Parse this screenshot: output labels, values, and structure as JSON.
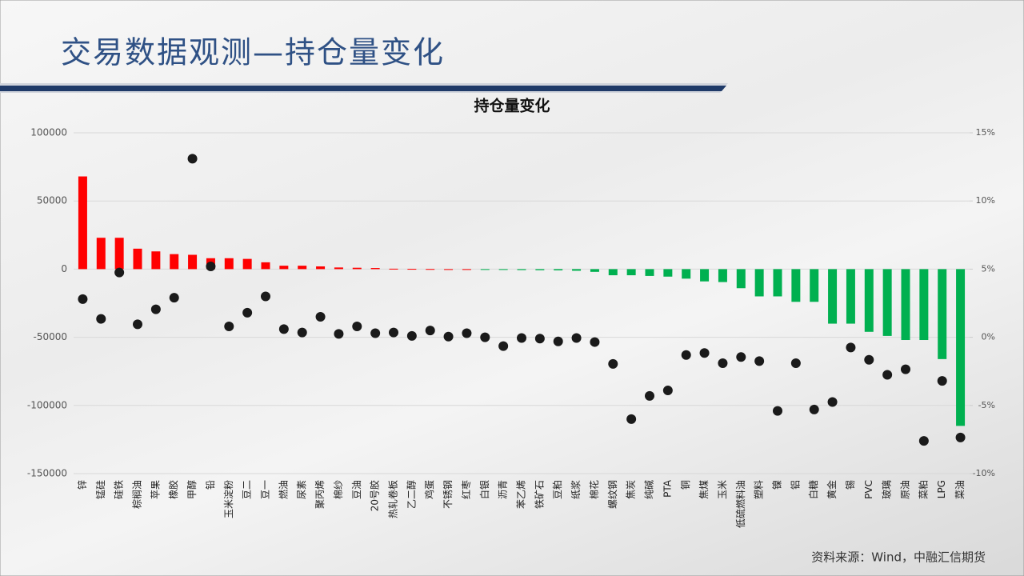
{
  "page_title": "交易数据观测—持仓量变化",
  "source": "资料来源：Wind，中融汇信期货",
  "chart_data": {
    "type": "bar-dot",
    "title": "持仓量变化",
    "categories": [
      "锌",
      "锰硅",
      "硅铁",
      "棕榈油",
      "苹果",
      "橡胶",
      "甲醇",
      "铅",
      "玉米淀粉",
      "豆二",
      "豆一",
      "燃油",
      "尿素",
      "聚丙烯",
      "棉纱",
      "豆油",
      "20号胶",
      "热轧卷板",
      "乙二醇",
      "鸡蛋",
      "不锈钢",
      "红枣",
      "白银",
      "沥青",
      "苯乙烯",
      "铁矿石",
      "豆粕",
      "纸浆",
      "棉花",
      "螺纹钢",
      "焦炭",
      "纯碱",
      "PTA",
      "铜",
      "焦煤",
      "玉米",
      "低硫燃料油",
      "塑料",
      "镍",
      "铝",
      "白糖",
      "黄金",
      "锡",
      "PVC",
      "玻璃",
      "原油",
      "菜粕",
      "LPG",
      "菜油"
    ],
    "series": [
      {
        "color": "#ff0000",
        "negative_color": "#00b050",
        "values": [
          68000,
          23000,
          23000,
          15000,
          13000,
          11000,
          10500,
          8000,
          8000,
          7500,
          5000,
          2500,
          2500,
          2000,
          1200,
          1000,
          800,
          300,
          200,
          100,
          0,
          0,
          -500,
          -600,
          -700,
          -800,
          -900,
          -1200,
          -2000,
          -4500,
          -4500,
          -5000,
          -5500,
          -7000,
          -9000,
          -9500,
          -14000,
          -20000,
          -20000,
          -24000,
          -24000,
          -40000,
          -40000,
          -46000,
          -49000,
          -52000,
          -52000,
          -66000,
          -115000
        ]
      },
      {
        "color": "#1a1a1a",
        "axis": "y2",
        "values": [
          2.8,
          1.35,
          4.75,
          0.95,
          2.05,
          2.9,
          13.1,
          5.2,
          0.8,
          1.8,
          3.0,
          0.6,
          0.35,
          1.5,
          0.25,
          0.8,
          0.3,
          0.35,
          0.1,
          0.5,
          0.05,
          0.3,
          0,
          -0.65,
          -0.05,
          -0.1,
          -0.3,
          -0.05,
          -0.35,
          -1.95,
          -6.0,
          -4.3,
          -3.9,
          -1.3,
          -1.15,
          -1.9,
          -1.45,
          -1.75,
          -5.4,
          -1.9,
          -5.3,
          -4.75,
          -0.75,
          -1.65,
          -2.75,
          -2.35,
          -7.6,
          -3.2,
          -7.35
        ]
      }
    ],
    "ylim": [
      -150000,
      100000
    ],
    "yticks": [
      -150000,
      -100000,
      -50000,
      0,
      50000,
      100000
    ],
    "y2lim": [
      -10,
      15
    ],
    "y2ticks": [
      {
        "value": -10,
        "label": "-10%"
      },
      {
        "value": -5,
        "label": "-5%"
      },
      {
        "value": 0,
        "label": "0%"
      },
      {
        "value": 5,
        "label": "5%"
      },
      {
        "value": 10,
        "label": "10%"
      },
      {
        "value": 15,
        "label": "15%"
      }
    ],
    "grid": true
  }
}
